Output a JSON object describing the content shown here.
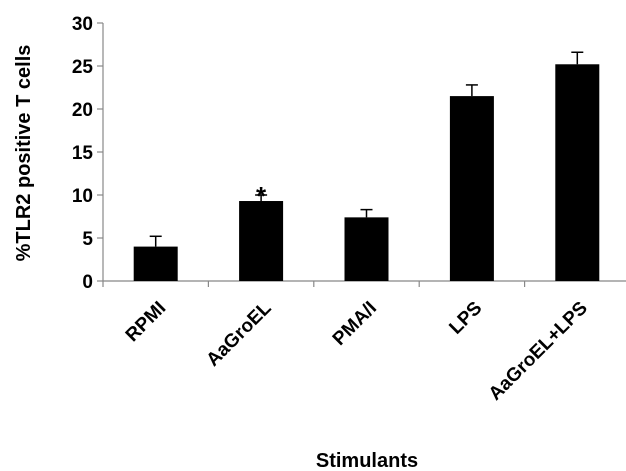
{
  "chart_data": {
    "type": "bar",
    "categories": [
      "RPMI",
      "AaGroEL",
      "PMA/I",
      "LPS",
      "AaGroEL+LPS"
    ],
    "values": [
      4.0,
      9.3,
      7.4,
      21.5,
      25.2
    ],
    "error": [
      1.2,
      0.7,
      0.9,
      1.3,
      1.4
    ],
    "xlabel": "Stimulants",
    "ylabel": "%TLR2 positive T cells",
    "ylim": [
      0,
      30
    ],
    "yticks": [
      0,
      5,
      10,
      15,
      20,
      25,
      30
    ],
    "annotations": [
      {
        "category": "AaGroEL",
        "text": "*"
      }
    ],
    "bar_color": "#000000",
    "grid": false,
    "legend": "none"
  }
}
